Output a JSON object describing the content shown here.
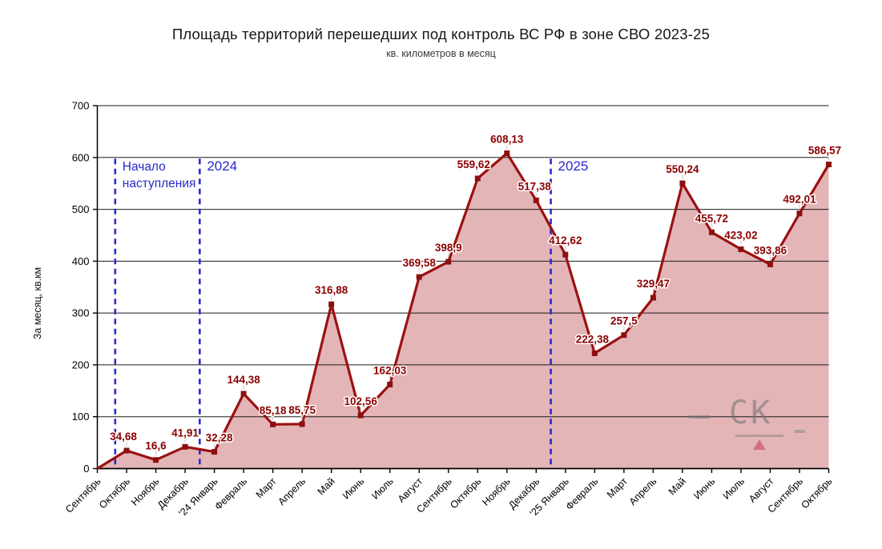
{
  "chart_data": {
    "type": "area",
    "title": "Площадь территорий перешедших под контроль ВС РФ в зоне СВО 2023-25",
    "subtitle": "кв. километров в месяц",
    "ylabel": "За месяц, кв.км",
    "ylim": [
      0,
      700
    ],
    "ytick_step": 100,
    "grid": true,
    "legend": false,
    "categories": [
      "Сентябрь",
      "Октябрь",
      "Ноябрь",
      "Декабрь",
      "'24 Январь",
      "Февраль",
      "Март",
      "Апрель",
      "Май",
      "Июнь",
      "Июль",
      "Август",
      "Сентябрь",
      "Октябрь",
      "Ноябрь",
      "Декабрь",
      "'25 Январь",
      "Февраль",
      "Март",
      "Апрель",
      "Май",
      "Июнь",
      "Июль",
      "Август",
      "Сентябрь",
      "Октябрь"
    ],
    "values": [
      0,
      34.68,
      16.6,
      41.91,
      32.28,
      144.38,
      85.18,
      85.75,
      316.88,
      102.56,
      162.03,
      369.58,
      398.9,
      559.62,
      608.13,
      517.38,
      412.62,
      222.38,
      257.5,
      329.47,
      550.24,
      455.72,
      423.02,
      393.86,
      492.01,
      586.57
    ],
    "point_labels": [
      "",
      "34,68",
      "16,6",
      "41,91",
      "32,28",
      "144,38",
      "85,18",
      "85,75",
      "316,88",
      "102,56",
      "162,03",
      "369,58",
      "398,9",
      "559,62",
      "608,13",
      "517,38",
      "412,62",
      "222,38",
      "257,5",
      "329,47",
      "550,24",
      "455,72",
      "423,02",
      "393,86",
      "492,01",
      "586,57"
    ],
    "line_color": "#9b1111",
    "marker_color": "#8e0f0f",
    "fill_color": "#e3b5b7",
    "label_color": "#8b0000",
    "grid_color": "#1a1a1a",
    "axis_color": "#000000",
    "annotation_color": "#2929cc",
    "annotations": [
      {
        "text": "Начало наступления",
        "x_index": 0.61
      },
      {
        "text": "2024",
        "x_index": 3.5
      },
      {
        "text": "2025",
        "x_index": 15.5
      }
    ]
  },
  "watermark": {
    "text": "СК"
  }
}
